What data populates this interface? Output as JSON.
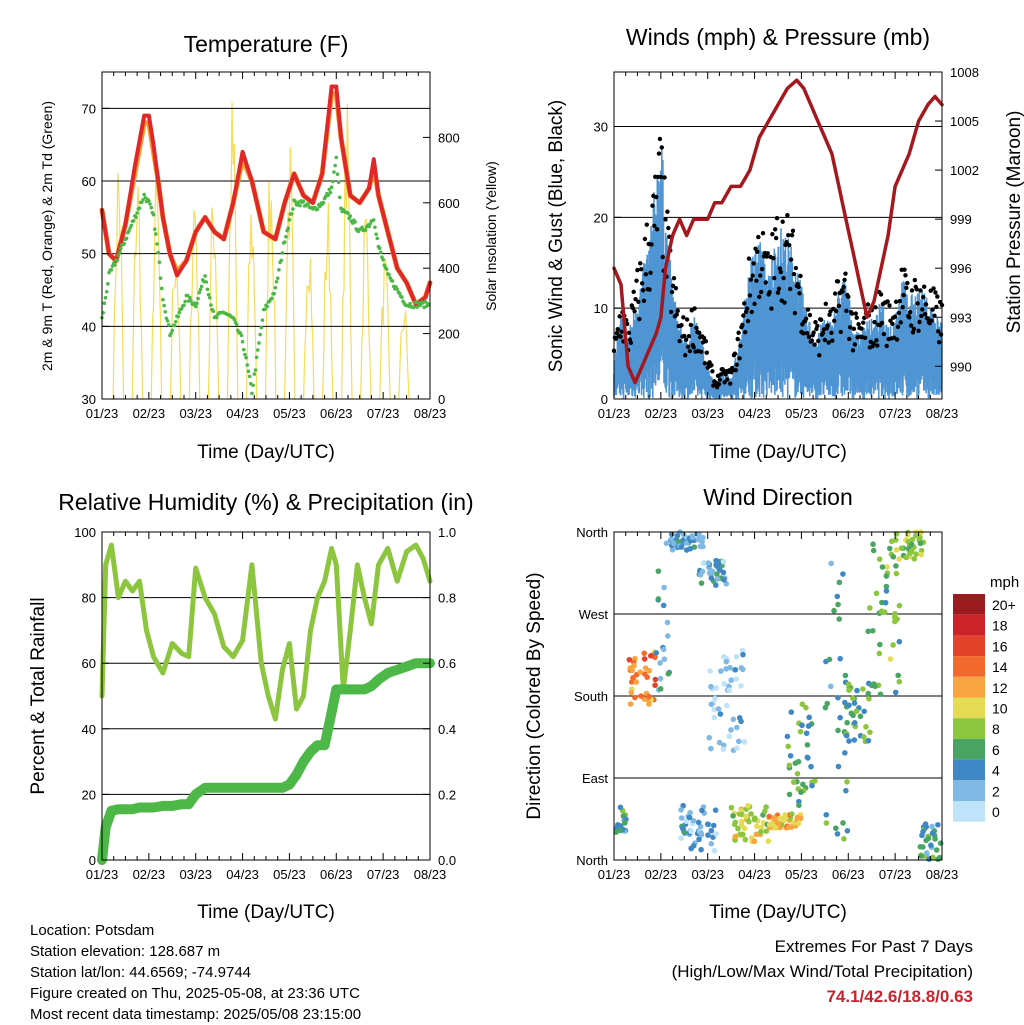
{
  "x_ticks": [
    "01/23",
    "02/23",
    "03/23",
    "04/23",
    "05/23",
    "06/23",
    "07/23",
    "08/23"
  ],
  "chart_data": [
    {
      "type": "line",
      "title": "Temperature (F)",
      "xlabel": "Time (Day/UTC)",
      "ylabel": "2m & 9m T (Red, Orange) & 2m Td (Green)",
      "y2label": "Solar Insolation (Yellow)",
      "ylim": [
        30,
        75
      ],
      "y2lim": [
        0,
        1000
      ],
      "yticks": [
        30,
        40,
        50,
        60,
        70
      ],
      "y2ticks": [
        0,
        200,
        400,
        600,
        800
      ],
      "x_days": [
        0,
        0.15,
        0.3,
        0.5,
        0.7,
        0.9,
        1.0,
        1.1,
        1.2,
        1.3,
        1.45,
        1.6,
        1.8,
        2.0,
        2.2,
        2.4,
        2.6,
        2.8,
        3.0,
        3.2,
        3.45,
        3.7,
        3.9,
        4.1,
        4.3,
        4.5,
        4.7,
        4.9,
        5.0,
        5.1,
        5.3,
        5.5,
        5.7,
        5.8,
        5.9,
        6.1,
        6.3,
        6.5,
        6.7,
        6.9,
        7.0
      ],
      "series": [
        {
          "name": "2m T",
          "color": "#e0282a",
          "values": [
            56,
            50,
            49,
            54,
            62,
            69,
            69,
            65,
            60,
            55,
            50,
            47,
            49,
            53,
            55,
            53,
            52,
            57,
            64,
            60,
            53,
            52,
            57,
            61,
            58,
            57,
            61,
            73,
            73,
            66,
            58,
            57,
            59,
            63,
            58,
            53,
            48,
            46,
            43,
            44,
            46
          ]
        },
        {
          "name": "9m T",
          "color": "#f39a2c",
          "values": [
            56,
            50,
            49,
            54,
            61,
            68,
            68,
            64,
            60,
            55,
            50,
            47.5,
            49,
            53,
            55,
            53,
            52,
            57,
            63,
            60,
            53,
            52,
            57,
            61,
            58,
            57,
            61,
            72,
            72,
            66,
            58,
            57,
            59,
            62,
            58,
            53,
            48,
            46,
            43,
            44,
            46
          ]
        },
        {
          "name": "2m Td",
          "color": "#4db848",
          "values": [
            41,
            47,
            49,
            52,
            55,
            58,
            57,
            55,
            50,
            44,
            39,
            41,
            44,
            43,
            47,
            41,
            42,
            41,
            38,
            31,
            42,
            45,
            52,
            57,
            57,
            56,
            57,
            59,
            63,
            56,
            55,
            53,
            54,
            55,
            51,
            47,
            45,
            43,
            43,
            43,
            43
          ]
        }
      ],
      "solar": {
        "color": "#f5dc5a",
        "peaks": [
          800,
          760,
          740,
          560,
          730,
          700,
          960,
          660,
          840,
          810,
          600,
          640,
          930,
          640,
          460,
          330
        ]
      }
    },
    {
      "type": "scatter",
      "title": "Winds (mph) & Pressure (mb)",
      "xlabel": "Time (Day/UTC)",
      "ylabel": "Sonic Wind & Gust (Blue, Black)",
      "y2label": "Station Pressure (Maroon)",
      "ylim": [
        0,
        36
      ],
      "y2lim": [
        988,
        1008
      ],
      "yticks": [
        0,
        10,
        20,
        30
      ],
      "y2ticks": [
        990,
        993,
        996,
        999,
        1002,
        1005,
        1008
      ],
      "x_days": [
        0,
        0.15,
        0.3,
        0.45,
        0.6,
        0.75,
        0.9,
        1.0,
        1.1,
        1.25,
        1.4,
        1.55,
        1.7,
        1.85,
        2.0,
        2.15,
        2.3,
        2.5,
        2.7,
        2.9,
        3.1,
        3.3,
        3.5,
        3.7,
        3.9,
        4.05,
        4.2,
        4.35,
        4.5,
        4.65,
        4.8,
        4.95,
        5.1,
        5.25,
        5.4,
        5.55,
        5.7,
        5.85,
        6.0,
        6.15,
        6.3,
        6.5,
        6.7,
        6.85,
        7.0
      ],
      "wind": [
        3,
        7,
        5,
        8,
        10,
        13,
        18,
        22,
        15,
        9,
        6,
        5,
        7,
        5,
        3,
        1,
        2,
        2,
        5,
        11,
        13,
        10,
        14,
        13,
        11,
        8,
        6,
        5,
        7,
        6,
        9,
        10,
        6,
        5,
        7,
        6,
        8,
        6,
        7,
        10,
        8,
        9,
        8,
        7,
        6
      ],
      "gust": [
        6,
        11,
        8,
        12,
        16,
        20,
        24,
        28,
        21,
        14,
        9,
        8,
        10,
        8,
        5,
        2,
        3,
        3,
        8,
        15,
        19,
        15,
        20,
        19,
        16,
        12,
        9,
        8,
        10,
        9,
        13,
        14,
        9,
        8,
        10,
        9,
        12,
        10,
        11,
        14,
        12,
        13,
        12,
        11,
        10
      ],
      "pressure": [
        996,
        995,
        990,
        989,
        990,
        991,
        992,
        993,
        996,
        998,
        999,
        998,
        999,
        999,
        999,
        1000,
        1000,
        1001,
        1001,
        1002,
        1004,
        1005,
        1006,
        1007,
        1007.5,
        1007,
        1006,
        1005,
        1004,
        1003,
        1001,
        999,
        997,
        995,
        993,
        994,
        996,
        998,
        1001,
        1002,
        1003,
        1005,
        1006,
        1006.5,
        1006
      ]
    },
    {
      "type": "line",
      "title": "Relative Humidity (%) & Precipitation (in)",
      "xlabel": "Time (Day/UTC)",
      "ylabel": "Percent & Total Rainfall",
      "ylim": [
        0,
        100
      ],
      "y2lim": [
        0,
        1
      ],
      "yticks": [
        0,
        20,
        40,
        60,
        80,
        100
      ],
      "y2ticks": [
        0.0,
        0.2,
        0.4,
        0.6,
        0.8,
        1.0
      ],
      "x_days": [
        0,
        0.08,
        0.2,
        0.35,
        0.5,
        0.65,
        0.8,
        0.95,
        1.1,
        1.3,
        1.5,
        1.7,
        1.85,
        2.0,
        2.2,
        2.4,
        2.6,
        2.8,
        3.0,
        3.2,
        3.4,
        3.55,
        3.7,
        3.85,
        4.0,
        4.15,
        4.3,
        4.45,
        4.6,
        4.75,
        4.9,
        5.0,
        5.15,
        5.3,
        5.45,
        5.6,
        5.75,
        5.9,
        6.1,
        6.3,
        6.5,
        6.7,
        6.85,
        7.0
      ],
      "series": [
        {
          "name": "RH",
          "color": "#8cc63f",
          "values": [
            50,
            90,
            96,
            80,
            85,
            82,
            85,
            70,
            62,
            57,
            66,
            63,
            62,
            89,
            80,
            75,
            65,
            62,
            67,
            90,
            60,
            50,
            43,
            58,
            66,
            46,
            50,
            70,
            80,
            85,
            95,
            90,
            52,
            70,
            90,
            80,
            72,
            90,
            95,
            85,
            94,
            96,
            92,
            85
          ]
        },
        {
          "name": "Precipitation",
          "color": "#4db848",
          "values": [
            0,
            0.1,
            0.15,
            0.155,
            0.155,
            0.155,
            0.16,
            0.16,
            0.16,
            0.165,
            0.165,
            0.17,
            0.17,
            0.2,
            0.22,
            0.22,
            0.22,
            0.22,
            0.22,
            0.22,
            0.22,
            0.22,
            0.22,
            0.22,
            0.23,
            0.26,
            0.3,
            0.33,
            0.35,
            0.35,
            0.45,
            0.52,
            0.52,
            0.52,
            0.52,
            0.52,
            0.53,
            0.55,
            0.57,
            0.58,
            0.59,
            0.6,
            0.6,
            0.6
          ]
        }
      ]
    },
    {
      "type": "scatter",
      "title": "Wind Direction",
      "xlabel": "Time (Day/UTC)",
      "ylabel": "Direction (Colored By Speed)",
      "ylim": [
        0,
        360
      ],
      "ytick_labels": [
        "North",
        "East",
        "South",
        "West",
        "North"
      ],
      "legend_title": "mph",
      "legend_labels": [
        "20+",
        "18",
        "16",
        "14",
        "12",
        "10",
        "8",
        "6",
        "4",
        "2",
        "0"
      ],
      "legend_colors": [
        "#9b1c20",
        "#cc2229",
        "#e3422b",
        "#f26a2e",
        "#f8a541",
        "#e4dc55",
        "#8cc63f",
        "#4aa564",
        "#3f88c5",
        "#7fb9e4",
        "#bfe3f8"
      ],
      "segments": [
        {
          "t0": 0.0,
          "t1": 0.3,
          "d0": 30,
          "d1": 60,
          "spd": 5
        },
        {
          "t0": 0.3,
          "t1": 0.9,
          "d0": 170,
          "d1": 230,
          "spd": 13
        },
        {
          "t0": 0.9,
          "t1": 1.2,
          "d0": 180,
          "d1": 350,
          "spd": 4
        },
        {
          "t0": 1.2,
          "t1": 1.9,
          "d0": 340,
          "d1": 360,
          "spd": 3
        },
        {
          "t0": 1.8,
          "t1": 2.4,
          "d0": 300,
          "d1": 330,
          "spd": 3
        },
        {
          "t0": 1.4,
          "t1": 2.2,
          "d0": 10,
          "d1": 60,
          "spd": 3
        },
        {
          "t0": 2.0,
          "t1": 2.8,
          "d0": 120,
          "d1": 230,
          "spd": 1
        },
        {
          "t0": 2.5,
          "t1": 3.3,
          "d0": 20,
          "d1": 60,
          "spd": 9
        },
        {
          "t0": 3.3,
          "t1": 4.0,
          "d0": 35,
          "d1": 50,
          "spd": 11
        },
        {
          "t0": 3.7,
          "t1": 4.3,
          "d0": 50,
          "d1": 180,
          "spd": 6
        },
        {
          "t0": 4.5,
          "t1": 5.0,
          "d0": 20,
          "d1": 340,
          "spd": 5
        },
        {
          "t0": 4.9,
          "t1": 5.5,
          "d0": 130,
          "d1": 200,
          "spd": 6
        },
        {
          "t0": 5.4,
          "t1": 6.1,
          "d0": 180,
          "d1": 350,
          "spd": 7
        },
        {
          "t0": 6.0,
          "t1": 6.6,
          "d0": 330,
          "d1": 360,
          "spd": 8
        },
        {
          "t0": 6.5,
          "t1": 7.0,
          "d0": 0,
          "d1": 40,
          "spd": 5
        }
      ]
    }
  ],
  "footer": {
    "location": "Location: Potsdam",
    "elevation": "Station elevation: 128.687 m",
    "latlon": "Station lat/lon: 44.6569; -74.9744",
    "created": "Figure created on Thu, 2025-05-08, at 23:36 UTC",
    "recent": "Most recent data timestamp: 2025/05/08 23:15:00"
  },
  "extremes": {
    "heading": "Extremes For Past 7 Days",
    "subheading": "(High/Low/Max Wind/Total Precipitation)",
    "values": "74.1/42.6/18.8/0.63"
  }
}
